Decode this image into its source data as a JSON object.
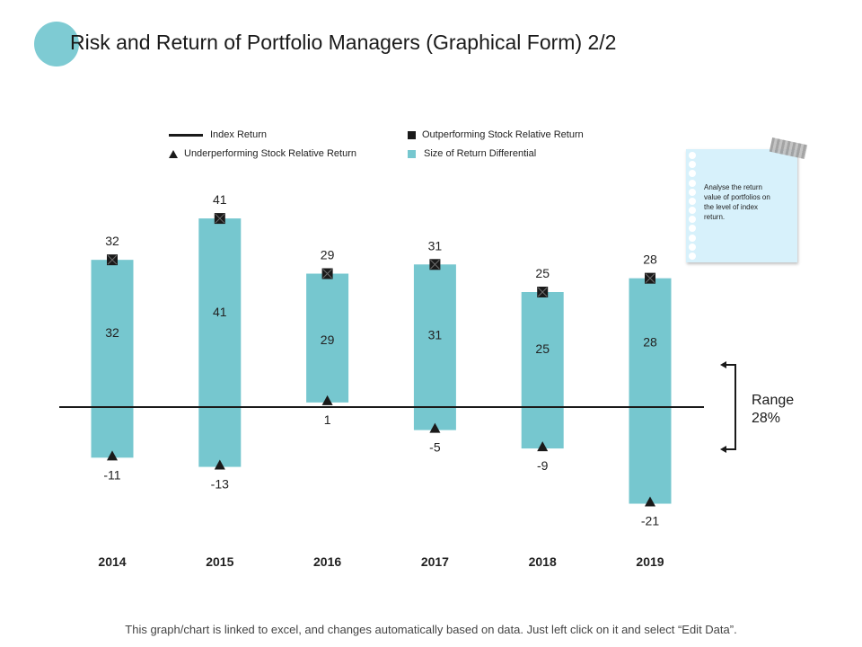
{
  "page": {
    "title": "Risk and Return of Portfolio Managers (Graphical Form) 2/2",
    "footer": "This graph/chart is linked to excel, and changes automatically based on data. Just left click on it and select “Edit Data”."
  },
  "colors": {
    "accent": "#7ecbd3",
    "bar": "#76c7cf",
    "marker": "#1a1a1a",
    "index_line": "#1a1a1a"
  },
  "legend": {
    "index_return": "Index Return",
    "outperforming": "Outperforming Stock Relative Return",
    "underperforming": "Underperforming Stock Relative Return",
    "size_diff": "Size of Return Differential"
  },
  "note": {
    "text": "Analyse the return value of portfolios on the level of index return."
  },
  "range": {
    "label": "Range",
    "value": "28%"
  },
  "chart_data": {
    "type": "bar",
    "categories": [
      "2014",
      "2015",
      "2016",
      "2017",
      "2018",
      "2019"
    ],
    "series": [
      {
        "name": "Outperforming Stock Relative Return",
        "values": [
          32,
          41,
          29,
          31,
          25,
          28
        ]
      },
      {
        "name": "Underperforming Stock Relative Return",
        "values": [
          -11,
          -13,
          1,
          -5,
          -9,
          -21
        ]
      },
      {
        "name": "Size of Return Differential",
        "values": [
          32,
          41,
          29,
          31,
          25,
          28
        ]
      }
    ],
    "index_return": 0,
    "ylim": [
      -25,
      45
    ],
    "grid": false
  }
}
